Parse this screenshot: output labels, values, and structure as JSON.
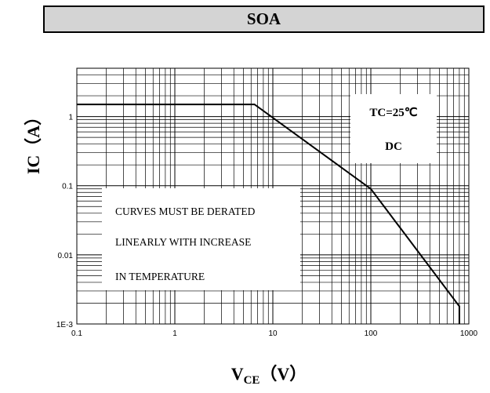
{
  "chart_data": {
    "type": "line",
    "title": "SOA",
    "xlabel": "VCE（V）",
    "xlabel_main": "V",
    "xlabel_sub": "CE",
    "xlabel_unit": "（V）",
    "ylabel": "IC（A）",
    "x_scale": "log",
    "y_scale": "log",
    "xlim": [
      0.1,
      1000
    ],
    "ylim": [
      0.001,
      5
    ],
    "x_ticks": [
      "0.1",
      "1",
      "10",
      "100",
      "1000"
    ],
    "y_ticks": [
      "1E-3",
      "0.01",
      "0.1",
      "1"
    ],
    "grid": true,
    "series": [
      {
        "x": [
          0.1,
          6.5,
          100,
          800,
          800
        ],
        "y": [
          1.5,
          1.5,
          0.09,
          0.0018,
          0.001
        ]
      }
    ],
    "annotations": {
      "condition": "TC=25℃",
      "mode": "DC",
      "note_lines": [
        "CURVES MUST BE DERATED",
        "LINEARLY WITH INCREASE",
        "IN TEMPERATURE"
      ]
    }
  }
}
